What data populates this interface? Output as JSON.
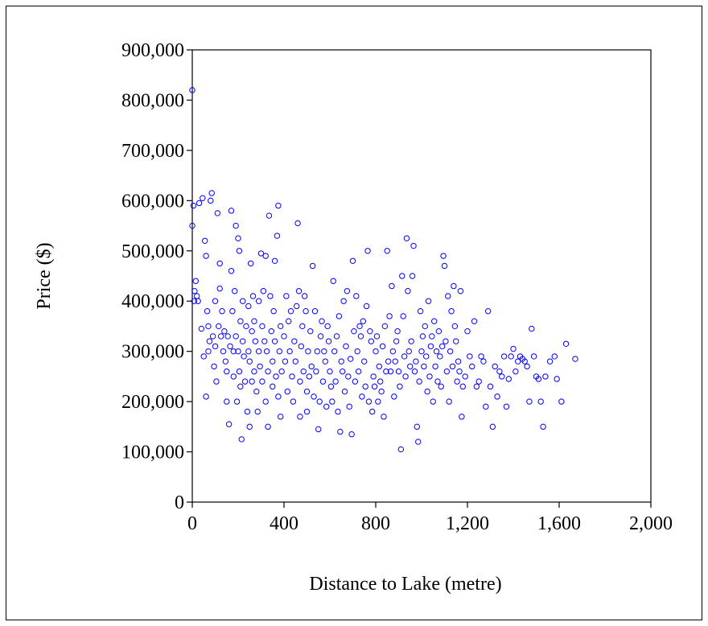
{
  "chart_data": {
    "type": "scatter",
    "title": "",
    "xlabel": "Distance to Lake (metre)",
    "ylabel": "Price ($)",
    "xlim": [
      0,
      2000
    ],
    "ylim": [
      0,
      900000
    ],
    "xticks": [
      0,
      400,
      800,
      1200,
      1600,
      2000
    ],
    "xtick_labels": [
      "0",
      "400",
      "800",
      "1,200",
      "1,600",
      "2,000"
    ],
    "yticks": [
      0,
      100000,
      200000,
      300000,
      400000,
      500000,
      600000,
      700000,
      800000,
      900000
    ],
    "ytick_labels": [
      "0",
      "100,000",
      "200,000",
      "300,000",
      "400,000",
      "500,000",
      "600,000",
      "700,000",
      "800,000",
      "900,000"
    ],
    "grid": false,
    "legend": "none",
    "marker": "open-circle",
    "color": "#0000ff",
    "series": [
      {
        "points": [
          [
            0,
            820000
          ],
          [
            0,
            550000
          ],
          [
            5,
            590000
          ],
          [
            10,
            420000
          ],
          [
            8,
            400000
          ],
          [
            15,
            440000
          ],
          [
            20,
            410000
          ],
          [
            25,
            400000
          ],
          [
            30,
            595000
          ],
          [
            40,
            345000
          ],
          [
            45,
            605000
          ],
          [
            50,
            290000
          ],
          [
            55,
            520000
          ],
          [
            60,
            490000
          ],
          [
            60,
            210000
          ],
          [
            65,
            380000
          ],
          [
            70,
            350000
          ],
          [
            70,
            300000
          ],
          [
            75,
            320000
          ],
          [
            80,
            600000
          ],
          [
            85,
            615000
          ],
          [
            90,
            330000
          ],
          [
            95,
            270000
          ],
          [
            100,
            400000
          ],
          [
            100,
            310000
          ],
          [
            105,
            240000
          ],
          [
            110,
            575000
          ],
          [
            115,
            350000
          ],
          [
            120,
            425000
          ],
          [
            120,
            475000
          ],
          [
            125,
            330000
          ],
          [
            130,
            380000
          ],
          [
            135,
            300000
          ],
          [
            140,
            340000
          ],
          [
            145,
            280000
          ],
          [
            150,
            200000
          ],
          [
            150,
            260000
          ],
          [
            155,
            330000
          ],
          [
            160,
            155000
          ],
          [
            165,
            310000
          ],
          [
            170,
            460000
          ],
          [
            170,
            580000
          ],
          [
            175,
            380000
          ],
          [
            180,
            300000
          ],
          [
            180,
            250000
          ],
          [
            185,
            420000
          ],
          [
            190,
            550000
          ],
          [
            190,
            330000
          ],
          [
            195,
            200000
          ],
          [
            200,
            525000
          ],
          [
            200,
            300000
          ],
          [
            205,
            500000
          ],
          [
            205,
            260000
          ],
          [
            210,
            360000
          ],
          [
            210,
            230000
          ],
          [
            215,
            125000
          ],
          [
            220,
            400000
          ],
          [
            220,
            320000
          ],
          [
            225,
            290000
          ],
          [
            230,
            240000
          ],
          [
            235,
            350000
          ],
          [
            240,
            180000
          ],
          [
            245,
            390000
          ],
          [
            245,
            300000
          ],
          [
            250,
            280000
          ],
          [
            250,
            150000
          ],
          [
            255,
            475000
          ],
          [
            260,
            340000
          ],
          [
            260,
            240000
          ],
          [
            265,
            410000
          ],
          [
            270,
            360000
          ],
          [
            270,
            260000
          ],
          [
            275,
            320000
          ],
          [
            280,
            220000
          ],
          [
            285,
            180000
          ],
          [
            290,
            400000
          ],
          [
            290,
            300000
          ],
          [
            295,
            270000
          ],
          [
            300,
            495000
          ],
          [
            305,
            350000
          ],
          [
            305,
            240000
          ],
          [
            310,
            420000
          ],
          [
            315,
            320000
          ],
          [
            320,
            200000
          ],
          [
            320,
            490000
          ],
          [
            325,
            300000
          ],
          [
            330,
            150000
          ],
          [
            330,
            260000
          ],
          [
            335,
            570000
          ],
          [
            340,
            410000
          ],
          [
            345,
            340000
          ],
          [
            350,
            280000
          ],
          [
            350,
            230000
          ],
          [
            355,
            380000
          ],
          [
            360,
            480000
          ],
          [
            360,
            320000
          ],
          [
            365,
            250000
          ],
          [
            370,
            530000
          ],
          [
            375,
            590000
          ],
          [
            375,
            210000
          ],
          [
            380,
            300000
          ],
          [
            385,
            350000
          ],
          [
            385,
            170000
          ],
          [
            390,
            260000
          ],
          [
            400,
            330000
          ],
          [
            405,
            280000
          ],
          [
            410,
            410000
          ],
          [
            415,
            220000
          ],
          [
            420,
            360000
          ],
          [
            425,
            300000
          ],
          [
            430,
            380000
          ],
          [
            435,
            250000
          ],
          [
            440,
            200000
          ],
          [
            445,
            320000
          ],
          [
            450,
            280000
          ],
          [
            455,
            390000
          ],
          [
            460,
            555000
          ],
          [
            465,
            420000
          ],
          [
            470,
            240000
          ],
          [
            470,
            170000
          ],
          [
            475,
            310000
          ],
          [
            480,
            350000
          ],
          [
            485,
            260000
          ],
          [
            490,
            410000
          ],
          [
            495,
            380000
          ],
          [
            500,
            180000
          ],
          [
            500,
            220000
          ],
          [
            505,
            300000
          ],
          [
            510,
            250000
          ],
          [
            515,
            340000
          ],
          [
            520,
            270000
          ],
          [
            525,
            470000
          ],
          [
            530,
            210000
          ],
          [
            535,
            380000
          ],
          [
            540,
            260000
          ],
          [
            545,
            300000
          ],
          [
            550,
            145000
          ],
          [
            555,
            200000
          ],
          [
            560,
            330000
          ],
          [
            565,
            360000
          ],
          [
            570,
            240000
          ],
          [
            575,
            300000
          ],
          [
            580,
            280000
          ],
          [
            585,
            190000
          ],
          [
            590,
            350000
          ],
          [
            595,
            320000
          ],
          [
            600,
            260000
          ],
          [
            605,
            230000
          ],
          [
            610,
            200000
          ],
          [
            615,
            440000
          ],
          [
            620,
            300000
          ],
          [
            625,
            240000
          ],
          [
            630,
            330000
          ],
          [
            635,
            180000
          ],
          [
            640,
            370000
          ],
          [
            645,
            140000
          ],
          [
            650,
            280000
          ],
          [
            655,
            260000
          ],
          [
            660,
            400000
          ],
          [
            665,
            220000
          ],
          [
            670,
            310000
          ],
          [
            675,
            420000
          ],
          [
            680,
            250000
          ],
          [
            685,
            190000
          ],
          [
            690,
            285000
          ],
          [
            695,
            135000
          ],
          [
            700,
            480000
          ],
          [
            705,
            340000
          ],
          [
            710,
            240000
          ],
          [
            715,
            410000
          ],
          [
            720,
            300000
          ],
          [
            725,
            260000
          ],
          [
            730,
            350000
          ],
          [
            735,
            330000
          ],
          [
            740,
            210000
          ],
          [
            745,
            360000
          ],
          [
            750,
            280000
          ],
          [
            755,
            230000
          ],
          [
            760,
            390000
          ],
          [
            765,
            500000
          ],
          [
            770,
            200000
          ],
          [
            775,
            340000
          ],
          [
            780,
            320000
          ],
          [
            785,
            180000
          ],
          [
            790,
            250000
          ],
          [
            795,
            230000
          ],
          [
            800,
            300000
          ],
          [
            805,
            330000
          ],
          [
            810,
            200000
          ],
          [
            815,
            270000
          ],
          [
            820,
            240000
          ],
          [
            825,
            220000
          ],
          [
            830,
            310000
          ],
          [
            835,
            170000
          ],
          [
            840,
            350000
          ],
          [
            845,
            260000
          ],
          [
            850,
            500000
          ],
          [
            855,
            280000
          ],
          [
            860,
            370000
          ],
          [
            865,
            260000
          ],
          [
            870,
            430000
          ],
          [
            875,
            300000
          ],
          [
            880,
            210000
          ],
          [
            885,
            280000
          ],
          [
            890,
            320000
          ],
          [
            895,
            340000
          ],
          [
            900,
            260000
          ],
          [
            905,
            230000
          ],
          [
            910,
            105000
          ],
          [
            915,
            450000
          ],
          [
            920,
            370000
          ],
          [
            925,
            290000
          ],
          [
            930,
            250000
          ],
          [
            935,
            525000
          ],
          [
            940,
            420000
          ],
          [
            945,
            300000
          ],
          [
            950,
            270000
          ],
          [
            955,
            320000
          ],
          [
            960,
            450000
          ],
          [
            965,
            510000
          ],
          [
            970,
            260000
          ],
          [
            975,
            280000
          ],
          [
            980,
            150000
          ],
          [
            985,
            120000
          ],
          [
            990,
            240000
          ],
          [
            995,
            380000
          ],
          [
            1000,
            300000
          ],
          [
            1005,
            330000
          ],
          [
            1010,
            270000
          ],
          [
            1015,
            350000
          ],
          [
            1020,
            290000
          ],
          [
            1025,
            220000
          ],
          [
            1030,
            400000
          ],
          [
            1035,
            250000
          ],
          [
            1040,
            310000
          ],
          [
            1045,
            330000
          ],
          [
            1050,
            200000
          ],
          [
            1055,
            360000
          ],
          [
            1060,
            270000
          ],
          [
            1065,
            300000
          ],
          [
            1070,
            240000
          ],
          [
            1075,
            340000
          ],
          [
            1080,
            290000
          ],
          [
            1085,
            230000
          ],
          [
            1090,
            310000
          ],
          [
            1095,
            490000
          ],
          [
            1100,
            470000
          ],
          [
            1105,
            320000
          ],
          [
            1110,
            260000
          ],
          [
            1115,
            410000
          ],
          [
            1120,
            200000
          ],
          [
            1125,
            300000
          ],
          [
            1130,
            380000
          ],
          [
            1135,
            270000
          ],
          [
            1140,
            430000
          ],
          [
            1145,
            350000
          ],
          [
            1150,
            320000
          ],
          [
            1155,
            240000
          ],
          [
            1160,
            280000
          ],
          [
            1165,
            260000
          ],
          [
            1170,
            420000
          ],
          [
            1175,
            170000
          ],
          [
            1180,
            230000
          ],
          [
            1190,
            250000
          ],
          [
            1200,
            340000
          ],
          [
            1210,
            290000
          ],
          [
            1220,
            270000
          ],
          [
            1230,
            360000
          ],
          [
            1240,
            230000
          ],
          [
            1250,
            240000
          ],
          [
            1260,
            290000
          ],
          [
            1270,
            280000
          ],
          [
            1280,
            190000
          ],
          [
            1290,
            380000
          ],
          [
            1300,
            230000
          ],
          [
            1310,
            150000
          ],
          [
            1320,
            270000
          ],
          [
            1330,
            210000
          ],
          [
            1340,
            260000
          ],
          [
            1350,
            250000
          ],
          [
            1360,
            290000
          ],
          [
            1370,
            190000
          ],
          [
            1380,
            245000
          ],
          [
            1390,
            290000
          ],
          [
            1400,
            305000
          ],
          [
            1410,
            260000
          ],
          [
            1420,
            280000
          ],
          [
            1430,
            290000
          ],
          [
            1440,
            285000
          ],
          [
            1450,
            280000
          ],
          [
            1460,
            270000
          ],
          [
            1470,
            200000
          ],
          [
            1480,
            345000
          ],
          [
            1490,
            290000
          ],
          [
            1500,
            250000
          ],
          [
            1510,
            245000
          ],
          [
            1520,
            200000
          ],
          [
            1530,
            150000
          ],
          [
            1540,
            250000
          ],
          [
            1560,
            280000
          ],
          [
            1580,
            290000
          ],
          [
            1590,
            245000
          ],
          [
            1610,
            200000
          ],
          [
            1630,
            315000
          ],
          [
            1670,
            285000
          ]
        ]
      }
    ]
  }
}
